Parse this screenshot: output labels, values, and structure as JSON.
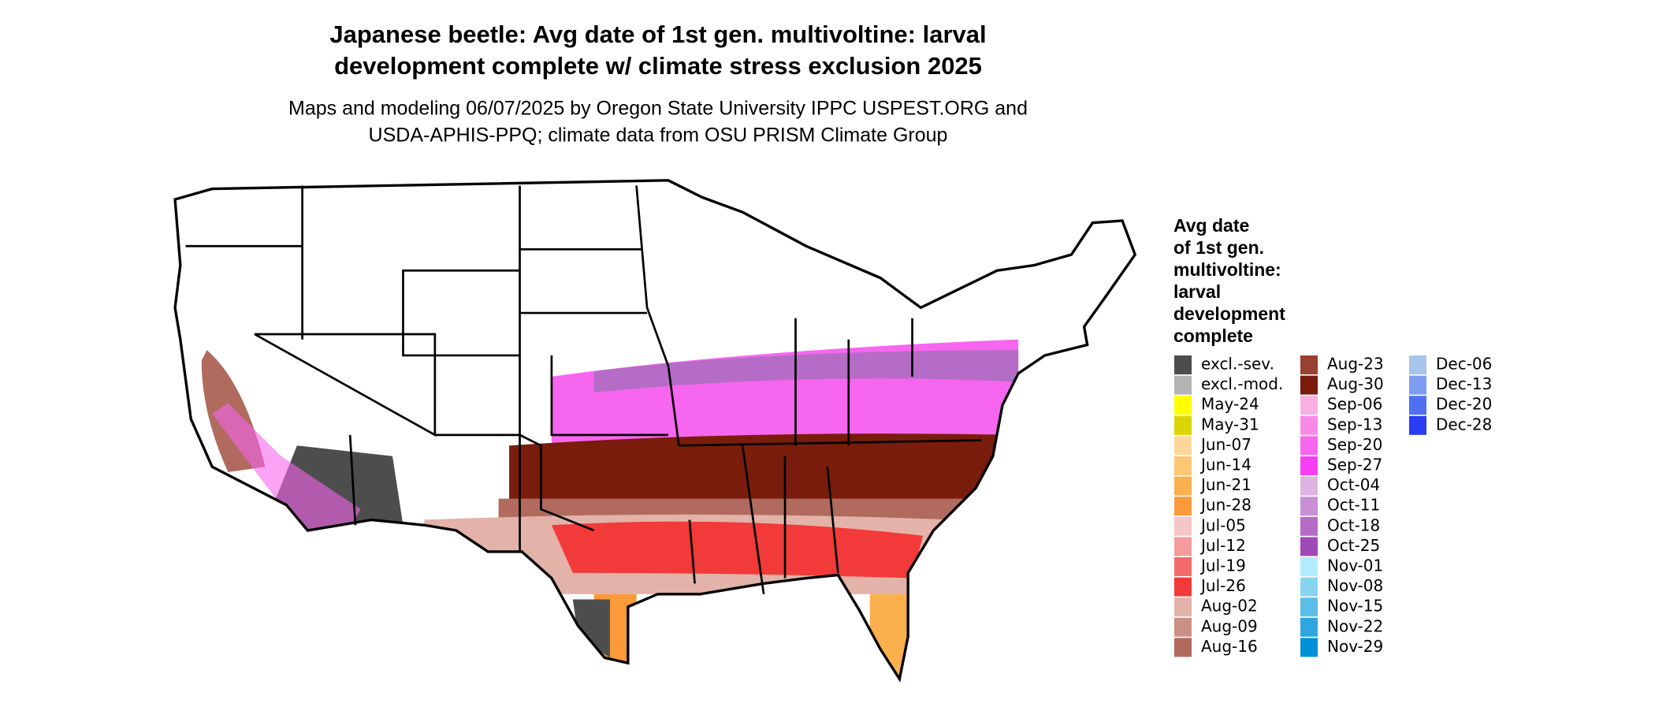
{
  "title": [
    "Japanese beetle: Avg date of 1st gen. multivoltine: larval",
    "development complete w/ climate stress exclusion 2025"
  ],
  "subtitle": [
    "Maps and modeling 06/07/2025 by Oregon State University IPPC USPEST.ORG and",
    "USDA-APHIS-PPQ; climate data from OSU PRISM Climate Group"
  ],
  "legend": {
    "title": [
      "Avg date",
      "of 1st gen.",
      "multivoltine:",
      "larval",
      "development",
      "complete"
    ],
    "items": [
      {
        "label": "excl.-sev.",
        "color": "#4d4d4d"
      },
      {
        "label": "excl.-mod.",
        "color": "#b3b3b3"
      },
      {
        "label": "May-24",
        "color": "#ffff00"
      },
      {
        "label": "May-31",
        "color": "#dcd400"
      },
      {
        "label": "Jun-07",
        "color": "#fdd79a"
      },
      {
        "label": "Jun-14",
        "color": "#fdc774"
      },
      {
        "label": "Jun-21",
        "color": "#fbb04e"
      },
      {
        "label": "Jun-28",
        "color": "#fb9a3a"
      },
      {
        "label": "Jul-05",
        "color": "#f5c6c6"
      },
      {
        "label": "Jul-12",
        "color": "#f59b9b"
      },
      {
        "label": "Jul-19",
        "color": "#f46b6b"
      },
      {
        "label": "Jul-26",
        "color": "#f23a3a"
      },
      {
        "label": "Aug-02",
        "color": "#e3b2a8"
      },
      {
        "label": "Aug-09",
        "color": "#c99185"
      },
      {
        "label": "Aug-16",
        "color": "#b06a5e"
      },
      {
        "label": "Aug-23",
        "color": "#9a4030"
      },
      {
        "label": "Aug-30",
        "color": "#7a1c0c"
      },
      {
        "label": "Sep-06",
        "color": "#f9b0e0"
      },
      {
        "label": "Sep-13",
        "color": "#f88ae6"
      },
      {
        "label": "Sep-20",
        "color": "#f766ee"
      },
      {
        "label": "Sep-27",
        "color": "#f63ef4"
      },
      {
        "label": "Oct-04",
        "color": "#dcb4e2"
      },
      {
        "label": "Oct-11",
        "color": "#c88fd4"
      },
      {
        "label": "Oct-18",
        "color": "#b46cc6"
      },
      {
        "label": "Oct-25",
        "color": "#9f48b8"
      },
      {
        "label": "Nov-01",
        "color": "#b0ecfc"
      },
      {
        "label": "Nov-08",
        "color": "#88d4f0"
      },
      {
        "label": "Nov-15",
        "color": "#5cbde8"
      },
      {
        "label": "Nov-22",
        "color": "#30a6e0"
      },
      {
        "label": "Nov-29",
        "color": "#0090d8"
      },
      {
        "label": "Dec-06",
        "color": "#a6c5ea"
      },
      {
        "label": "Dec-13",
        "color": "#7d9ef0"
      },
      {
        "label": "Dec-20",
        "color": "#5070f2"
      },
      {
        "label": "Dec-28",
        "color": "#2a3cf4"
      }
    ]
  }
}
